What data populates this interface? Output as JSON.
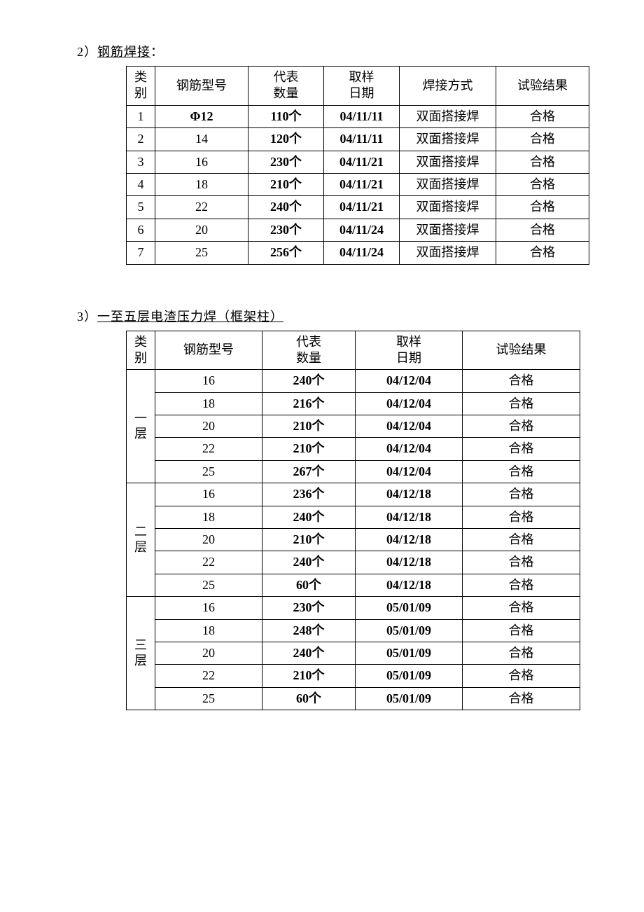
{
  "section2": {
    "title_prefix": "2）",
    "title_text": "钢筋焊接",
    "title_suffix": "：",
    "headers": {
      "cat": "类别",
      "model": "钢筋型号",
      "qty": "代表\n数量",
      "date": "取样\n日期",
      "method": "焊接方式",
      "result": "试验结果"
    },
    "qty_unit": "个",
    "rows": [
      {
        "cat": "1",
        "model": "Φ12",
        "qty": "110",
        "date": "04/11/11",
        "method": "双面搭接焊",
        "result": "合格",
        "model_bold": true
      },
      {
        "cat": "2",
        "model": "14",
        "qty": "120",
        "date": "04/11/11",
        "method": "双面搭接焊",
        "result": "合格"
      },
      {
        "cat": "3",
        "model": "16",
        "qty": "230",
        "date": "04/11/21",
        "method": "双面搭接焊",
        "result": "合格"
      },
      {
        "cat": "4",
        "model": "18",
        "qty": "210",
        "date": "04/11/21",
        "method": "双面搭接焊",
        "result": "合格"
      },
      {
        "cat": "5",
        "model": "22",
        "qty": "240",
        "date": "04/11/21",
        "method": "双面搭接焊",
        "result": "合格"
      },
      {
        "cat": "6",
        "model": "20",
        "qty": "230",
        "date": "04/11/24",
        "method": "双面搭接焊",
        "result": "合格"
      },
      {
        "cat": "7",
        "model": "25",
        "qty": "256",
        "date": "04/11/24",
        "method": "双面搭接焊",
        "result": "合格"
      }
    ]
  },
  "section3": {
    "title_prefix": "3）",
    "title_text": "一至五层电渣压力焊（框架柱）",
    "headers": {
      "cat": "类别",
      "model": "钢筋型号",
      "qty": "代表\n数量",
      "date": "取样\n日期",
      "result": "试验结果"
    },
    "qty_unit": "个",
    "groups": [
      {
        "label": "一层",
        "rows": [
          {
            "model": "16",
            "qty": "240",
            "date": "04/12/04",
            "result": "合格"
          },
          {
            "model": "18",
            "qty": "216",
            "date": "04/12/04",
            "result": "合格"
          },
          {
            "model": "20",
            "qty": "210",
            "date": "04/12/04",
            "result": "合格"
          },
          {
            "model": "22",
            "qty": "210",
            "date": "04/12/04",
            "result": "合格"
          },
          {
            "model": "25",
            "qty": "267",
            "date": "04/12/04",
            "result": "合格"
          }
        ]
      },
      {
        "label": "二层",
        "rows": [
          {
            "model": "16",
            "qty": "236",
            "date": "04/12/18",
            "result": "合格"
          },
          {
            "model": "18",
            "qty": "240",
            "date": "04/12/18",
            "result": "合格"
          },
          {
            "model": "20",
            "qty": "210",
            "date": "04/12/18",
            "result": "合格"
          },
          {
            "model": "22",
            "qty": "240",
            "date": "04/12/18",
            "result": "合格"
          },
          {
            "model": "25",
            "qty": "60",
            "date": "04/12/18",
            "result": "合格"
          }
        ]
      },
      {
        "label": "三层",
        "rows": [
          {
            "model": "16",
            "qty": "230",
            "date": "05/01/09",
            "result": "合格"
          },
          {
            "model": "18",
            "qty": "248",
            "date": "05/01/09",
            "result": "合格"
          },
          {
            "model": "20",
            "qty": "240",
            "date": "05/01/09",
            "result": "合格"
          },
          {
            "model": "22",
            "qty": "210",
            "date": "05/01/09",
            "result": "合格"
          },
          {
            "model": "25",
            "qty": "60",
            "date": "05/01/09",
            "result": "合格"
          }
        ]
      }
    ]
  }
}
